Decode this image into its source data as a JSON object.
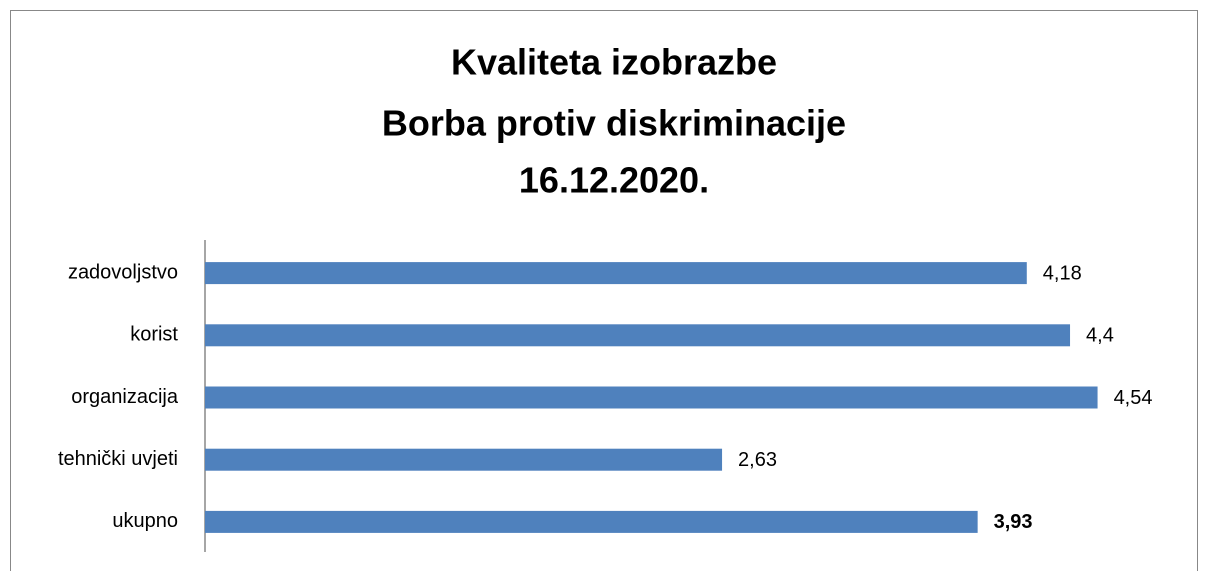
{
  "chart_data": {
    "type": "bar",
    "orientation": "horizontal",
    "title": [
      "Kvaliteta izobrazbe",
      "Borba protiv diskriminacije",
      "16.12.2020."
    ],
    "categories": [
      "zadovoljstvo",
      "korist",
      "organizacija",
      "tehnički uvjeti",
      "ukupno"
    ],
    "values": [
      4.18,
      4.4,
      4.54,
      2.63,
      3.93
    ],
    "value_labels": [
      "4,18",
      "4,4",
      "4,54",
      "2,63",
      "3,93"
    ],
    "color": "#4f81bd",
    "xlim": [
      0,
      5
    ]
  }
}
